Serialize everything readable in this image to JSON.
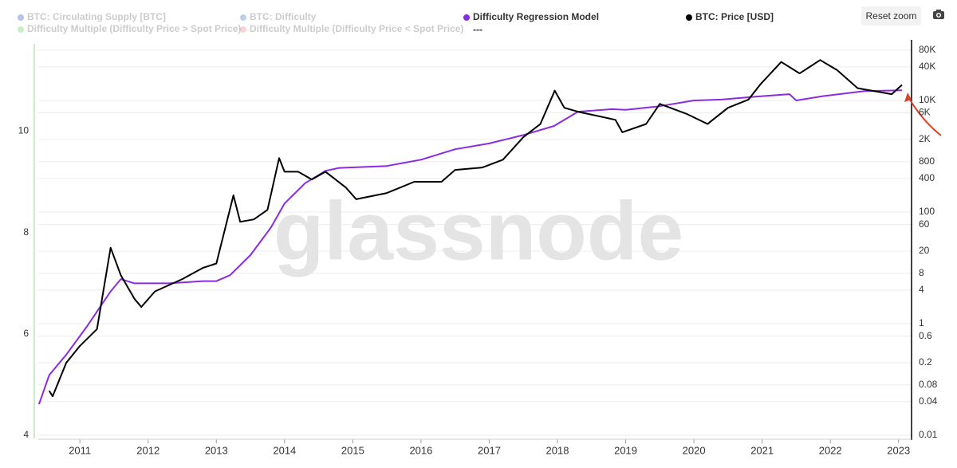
{
  "chart_data": {
    "type": "line",
    "hidden_series": [
      {
        "name": "BTC: Circulating Supply [BTC]",
        "color": "#2b57c9"
      },
      {
        "name": "BTC: Difficulty",
        "color": "#3a7bc0"
      },
      {
        "name": "Difficulty Multiple (Difficulty Price > Spot Price)",
        "color": "#5ecf5e"
      },
      {
        "name": "Difficulty Multiple (Difficulty Price < Spot Price)",
        "color": "#f08080"
      }
    ],
    "legend_extra": "---",
    "watermark": "glassnode",
    "button": "Reset zoom",
    "series": [
      {
        "name": "Difficulty Regression Model",
        "color": "#8a2be2",
        "axis": "y2",
        "x": [
          2010.4,
          2010.55,
          2010.8,
          2011.1,
          2011.45,
          2011.6,
          2011.8,
          2012.3,
          2012.8,
          2013.0,
          2013.2,
          2013.5,
          2013.8,
          2014.0,
          2014.3,
          2014.6,
          2014.8,
          2015.5,
          2016.0,
          2016.5,
          2017.0,
          2017.5,
          2017.95,
          2018.3,
          2018.8,
          2019.0,
          2019.5,
          2020.0,
          2020.4,
          2020.9,
          2021.4,
          2021.5,
          2021.9,
          2022.5,
          2023.05
        ],
        "values": [
          0.036,
          0.12,
          0.28,
          0.88,
          3.8,
          6.3,
          5.3,
          5.3,
          5.8,
          5.8,
          7.4,
          17,
          53,
          143,
          330,
          550,
          620,
          670,
          870,
          1340,
          1700,
          2400,
          3500,
          6300,
          7000,
          6800,
          7900,
          10000,
          10400,
          11700,
          13000,
          10000,
          12000,
          14700,
          15200
        ]
      },
      {
        "name": "BTC: Price [USD]",
        "color": "#000000",
        "axis": "y2",
        "x": [
          2010.55,
          2010.6,
          2010.8,
          2011.0,
          2011.25,
          2011.45,
          2011.6,
          2011.8,
          2011.9,
          2012.1,
          2012.5,
          2012.8,
          2013.0,
          2013.25,
          2013.35,
          2013.55,
          2013.75,
          2013.92,
          2014.0,
          2014.2,
          2014.4,
          2014.6,
          2014.9,
          2015.05,
          2015.5,
          2015.9,
          2016.3,
          2016.5,
          2016.9,
          2017.2,
          2017.5,
          2017.75,
          2017.96,
          2018.1,
          2018.3,
          2018.85,
          2018.95,
          2019.3,
          2019.5,
          2019.9,
          2020.2,
          2020.5,
          2020.8,
          2020.98,
          2021.28,
          2021.55,
          2021.85,
          2022.1,
          2022.4,
          2022.9,
          2023.05
        ],
        "values": [
          0.063,
          0.05,
          0.2,
          0.4,
          0.8,
          23,
          7.4,
          2.8,
          2,
          3.8,
          6.3,
          10,
          12,
          200,
          67,
          74,
          110,
          930,
          530,
          530,
          385,
          530,
          275,
          170,
          220,
          350,
          350,
          570,
          630,
          870,
          2200,
          3800,
          15000,
          7400,
          6300,
          4500,
          2700,
          3800,
          8700,
          5700,
          3800,
          7400,
          10400,
          19800,
          49000,
          30500,
          53000,
          35000,
          16600,
          13000,
          19000
        ]
      }
    ],
    "xlim": [
      2010.39,
      2023.19
    ],
    "xticks": [
      2011,
      2012,
      2013,
      2014,
      2015,
      2016,
      2017,
      2018,
      2019,
      2020,
      2021,
      2022,
      2023
    ],
    "ylim": [
      3.92,
      11.8
    ],
    "yticks": [
      4,
      6,
      8,
      10
    ],
    "y2lim": [
      0.0085,
      122000
    ],
    "y2ticks": [
      0.01,
      0.04,
      0.08,
      0.2,
      0.6,
      1,
      4,
      8,
      20,
      60,
      100,
      400,
      800,
      {
        "value": 2000,
        "label": "2K"
      },
      {
        "value": 6000,
        "label": "6K"
      },
      {
        "value": 10000,
        "label": "10K"
      },
      {
        "value": 40000,
        "label": "40K"
      },
      {
        "value": 80000,
        "label": "80K"
      }
    ],
    "y2log": true,
    "grid": true
  }
}
